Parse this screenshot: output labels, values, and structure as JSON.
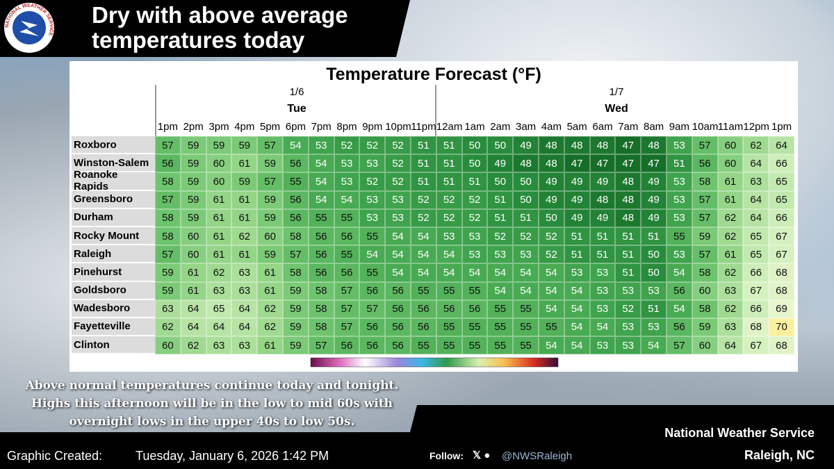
{
  "header": {
    "title": "Dry with above average temperatures today",
    "logo_text": "NATIONAL WEATHER SERVICE"
  },
  "table": {
    "title": "Temperature Forecast (°F)",
    "days": [
      {
        "date": "1/6",
        "day": "Tue",
        "hours": [
          "1pm",
          "2pm",
          "3pm",
          "4pm",
          "5pm",
          "6pm",
          "7pm",
          "8pm",
          "9pm",
          "10pm",
          "11pm"
        ]
      },
      {
        "date": "1/7",
        "day": "Wed",
        "hours": [
          "12am",
          "1am",
          "2am",
          "3am",
          "4am",
          "5am",
          "6am",
          "7am",
          "8am",
          "9am",
          "10am",
          "11am",
          "12pm",
          "1pm"
        ]
      }
    ],
    "rows": [
      {
        "name": "Roxboro",
        "values": [
          57,
          59,
          59,
          59,
          57,
          54,
          53,
          52,
          52,
          52,
          51,
          51,
          50,
          50,
          49,
          48,
          48,
          48,
          47,
          48,
          53,
          57,
          60,
          62,
          64
        ]
      },
      {
        "name": "Winston-Salem",
        "values": [
          56,
          59,
          60,
          61,
          59,
          56,
          54,
          53,
          53,
          52,
          51,
          51,
          50,
          49,
          48,
          48,
          47,
          47,
          47,
          47,
          51,
          56,
          60,
          64,
          66
        ]
      },
      {
        "name": "Roanoke Rapids",
        "values": [
          58,
          59,
          60,
          59,
          57,
          55,
          54,
          53,
          52,
          52,
          51,
          51,
          51,
          50,
          50,
          49,
          49,
          49,
          48,
          49,
          53,
          58,
          61,
          63,
          65
        ]
      },
      {
        "name": "Greensboro",
        "values": [
          57,
          59,
          61,
          61,
          59,
          56,
          54,
          54,
          53,
          53,
          52,
          52,
          52,
          51,
          50,
          49,
          49,
          48,
          48,
          49,
          53,
          57,
          61,
          64,
          65
        ]
      },
      {
        "name": "Durham",
        "values": [
          58,
          59,
          61,
          61,
          59,
          56,
          55,
          55,
          53,
          53,
          52,
          52,
          52,
          51,
          51,
          50,
          49,
          49,
          48,
          49,
          53,
          57,
          62,
          64,
          66
        ]
      },
      {
        "name": "Rocky Mount",
        "values": [
          58,
          60,
          61,
          62,
          60,
          58,
          56,
          56,
          55,
          54,
          54,
          53,
          53,
          52,
          52,
          52,
          51,
          51,
          51,
          51,
          55,
          59,
          62,
          65,
          67
        ]
      },
      {
        "name": "Raleigh",
        "values": [
          57,
          60,
          61,
          61,
          59,
          57,
          56,
          55,
          54,
          54,
          54,
          54,
          53,
          53,
          53,
          52,
          51,
          51,
          51,
          50,
          53,
          57,
          61,
          65,
          67
        ]
      },
      {
        "name": "Pinehurst",
        "values": [
          59,
          61,
          62,
          63,
          61,
          58,
          56,
          56,
          55,
          54,
          54,
          54,
          54,
          54,
          54,
          54,
          53,
          53,
          51,
          50,
          54,
          58,
          62,
          66,
          68
        ]
      },
      {
        "name": "Goldsboro",
        "values": [
          59,
          61,
          63,
          63,
          61,
          59,
          58,
          57,
          56,
          56,
          55,
          55,
          55,
          54,
          54,
          54,
          54,
          53,
          53,
          53,
          56,
          60,
          63,
          67,
          68
        ]
      },
      {
        "name": "Wadesboro",
        "values": [
          63,
          64,
          65,
          64,
          62,
          59,
          58,
          57,
          57,
          56,
          56,
          56,
          56,
          55,
          55,
          54,
          54,
          53,
          52,
          51,
          54,
          58,
          62,
          66,
          69
        ]
      },
      {
        "name": "Fayetteville",
        "values": [
          62,
          64,
          64,
          64,
          62,
          59,
          58,
          57,
          56,
          56,
          56,
          55,
          55,
          55,
          55,
          55,
          54,
          54,
          53,
          53,
          56,
          59,
          63,
          68,
          70
        ]
      },
      {
        "name": "Clinton",
        "values": [
          60,
          62,
          63,
          63,
          61,
          59,
          57,
          56,
          56,
          56,
          55,
          55,
          55,
          55,
          55,
          54,
          54,
          53,
          53,
          54,
          57,
          60,
          64,
          67,
          68
        ]
      }
    ]
  },
  "summary": [
    "Above normal temperatures continue today and tonight.",
    "Highs this afternoon will be in the low to mid 60s with",
    "overnight lows in the upper 40s to low 50s."
  ],
  "footer": {
    "created_label": "Graphic Created:",
    "created": "Tuesday, January 6, 2026 1:42 PM",
    "follow": "Follow:",
    "handle": "@NWSRaleigh",
    "office": "National Weather Service",
    "location": "Raleigh, NC"
  }
}
